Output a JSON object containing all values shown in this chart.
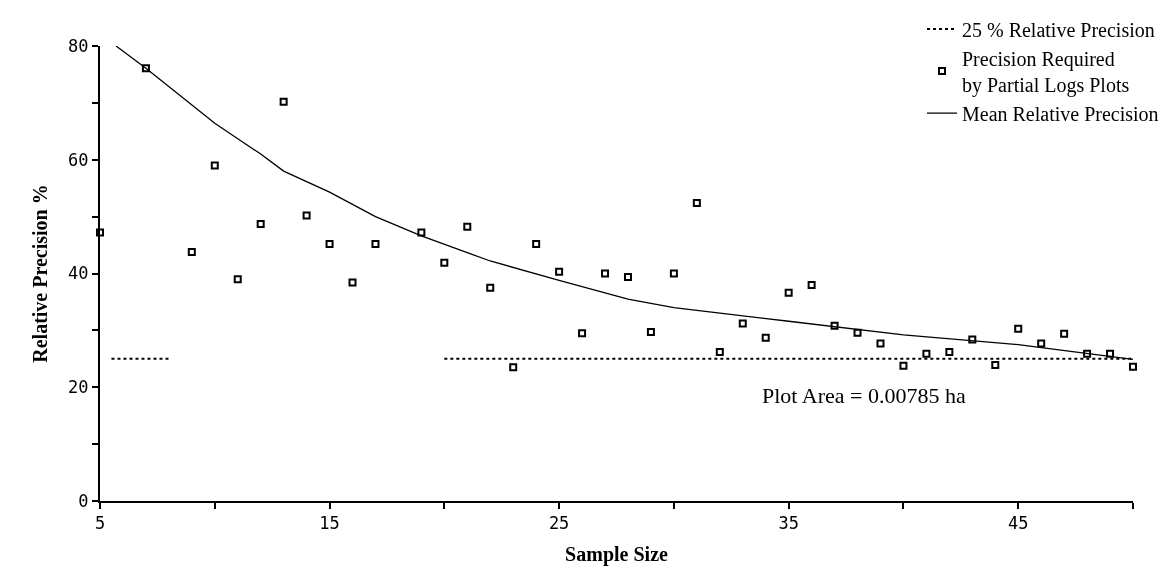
{
  "chart_data": {
    "type": "scatter",
    "xlabel": "Sample Size",
    "ylabel": "Relative Precision %",
    "xlim": [
      5,
      50
    ],
    "ylim": [
      0,
      80
    ],
    "xticks": [
      5,
      {
        "value": 10,
        "label": null
      },
      15,
      {
        "value": 20,
        "label": null
      },
      25,
      {
        "value": 30,
        "label": null
      },
      35,
      {
        "value": 40,
        "label": null
      },
      45,
      {
        "value": 50,
        "label": null
      }
    ],
    "yticks": [
      0,
      {
        "value": 10,
        "label": null
      },
      20,
      {
        "value": 30,
        "label": null
      },
      40,
      {
        "value": 50,
        "label": null
      },
      60,
      {
        "value": 70,
        "label": null
      },
      80
    ],
    "legend": "top right",
    "annotations": [
      "Plot Area = 0.00785 ha"
    ],
    "series": [
      {
        "name": "25 % Relative Precision",
        "type": "line",
        "line_style": "dotted",
        "marker": "none",
        "color": "#000000",
        "x": [
          5.5,
          8
        ],
        "values": [
          25,
          25
        ]
      },
      {
        "type": "line",
        "line_style": "dotted",
        "marker": "none",
        "color": "#000000",
        "x": [
          20,
          50
        ],
        "values": [
          25,
          25
        ]
      },
      {
        "name": "Precision Required\nby Partial Logs Plots",
        "marker": "square",
        "color": "#000000",
        "x": [
          5,
          7,
          9,
          10,
          11,
          12,
          13,
          14,
          15,
          16,
          17,
          19,
          20,
          21,
          22,
          23,
          24,
          25,
          26,
          27,
          28,
          29,
          30,
          31,
          32,
          33,
          34,
          35,
          36,
          37,
          38,
          39,
          40,
          41,
          42,
          43,
          44,
          45,
          46,
          47,
          48,
          49,
          50
        ],
        "values": [
          47.2,
          76.1,
          43.8,
          59.0,
          39.0,
          48.7,
          70.2,
          50.2,
          45.2,
          38.4,
          45.2,
          47.2,
          41.9,
          48.2,
          37.5,
          23.5,
          45.2,
          40.3,
          29.5,
          40.0,
          39.4,
          29.7,
          40.0,
          52.4,
          26.2,
          31.2,
          28.7,
          36.6,
          38.0,
          30.8,
          29.6,
          27.7,
          23.8,
          25.9,
          26.2,
          28.4,
          23.9,
          30.3,
          27.7,
          29.4,
          25.9,
          25.9,
          23.6
        ]
      },
      {
        "name": "Mean Relative Precision",
        "type": "line",
        "line_style": "solid",
        "marker": "none",
        "color": "#000000",
        "x": [
          5.7,
          7,
          10,
          12,
          13,
          15,
          17,
          19,
          22,
          25,
          28,
          30,
          35,
          40,
          45,
          50
        ],
        "values": [
          80,
          76.1,
          66.4,
          61.0,
          58.0,
          54.3,
          50.0,
          46.6,
          42.2,
          38.8,
          35.5,
          34.0,
          31.6,
          29.2,
          27.5,
          24.9
        ]
      }
    ]
  }
}
